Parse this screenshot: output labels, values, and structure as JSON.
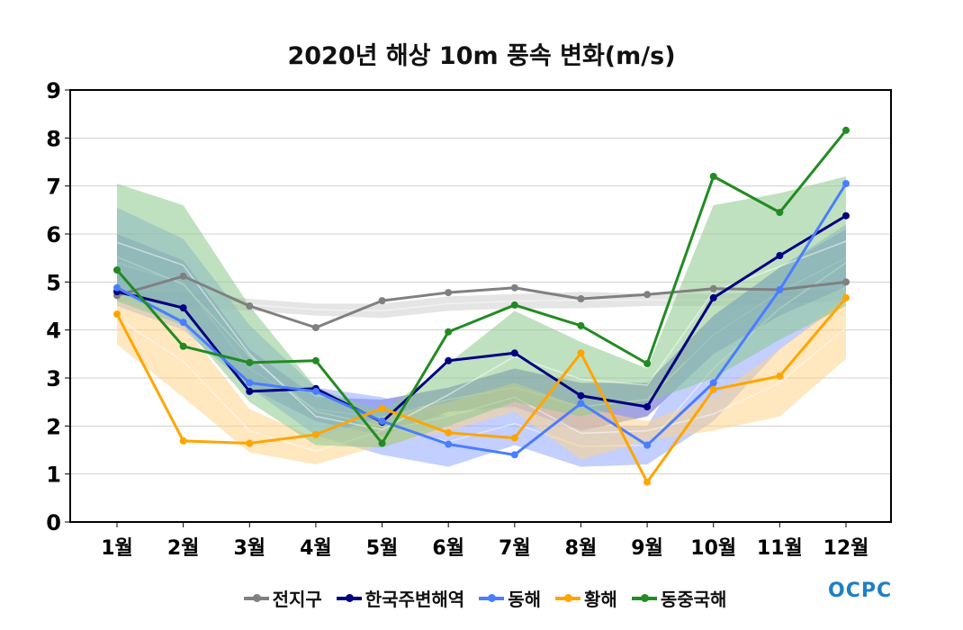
{
  "chart_data": {
    "type": "line",
    "title": "2020년 해상 10m 풍속 변화(m/s)",
    "xlabel": "",
    "ylabel": "",
    "categories": [
      "1월",
      "2월",
      "3월",
      "4월",
      "5월",
      "6월",
      "7월",
      "8월",
      "9월",
      "10월",
      "11월",
      "12월"
    ],
    "ylim": [
      0,
      9
    ],
    "yticks": [
      0,
      1,
      2,
      3,
      4,
      5,
      6,
      7,
      8,
      9
    ],
    "grid": true,
    "legend": "bottom",
    "series": [
      {
        "name": "전지구",
        "color": "#808080",
        "band_color": "#cfcfcf",
        "values": [
          4.72,
          5.12,
          4.5,
          4.05,
          4.61,
          4.78,
          4.88,
          4.65,
          4.74,
          4.86,
          4.84,
          5.0
        ],
        "band_low": [
          4.6,
          4.5,
          4.4,
          4.3,
          4.25,
          4.4,
          4.45,
          4.45,
          4.5,
          4.5,
          4.55,
          4.6
        ],
        "band_high": [
          4.8,
          4.8,
          4.65,
          4.55,
          4.55,
          4.7,
          4.75,
          4.8,
          4.75,
          4.75,
          4.8,
          4.85
        ]
      },
      {
        "name": "한국주변해역",
        "color": "#000080",
        "band_color": "#5a5ac8",
        "values": [
          4.8,
          4.46,
          2.72,
          2.78,
          2.08,
          3.36,
          3.52,
          2.63,
          2.4,
          4.67,
          5.55,
          6.38
        ],
        "band_low": [
          4.8,
          4.5,
          2.8,
          2.1,
          1.8,
          2.3,
          2.4,
          1.9,
          2.2,
          3.5,
          4.3,
          4.9
        ],
        "band_high": [
          6.0,
          5.45,
          3.6,
          2.6,
          2.55,
          2.8,
          3.2,
          2.9,
          2.9,
          4.3,
          5.3,
          6.1
        ]
      },
      {
        "name": "동해",
        "color": "#4a7dff",
        "band_color": "#8fa8ff",
        "values": [
          4.88,
          4.16,
          2.9,
          2.72,
          2.1,
          1.62,
          1.4,
          2.47,
          1.6,
          2.9,
          4.84,
          7.05
        ],
        "band_low": [
          4.5,
          4.0,
          2.8,
          1.8,
          1.4,
          1.15,
          1.6,
          1.15,
          1.2,
          2.1,
          3.6,
          4.6
        ],
        "band_high": [
          6.55,
          5.9,
          4.1,
          2.8,
          2.6,
          2.2,
          2.5,
          2.0,
          2.0,
          4.3,
          5.3,
          6.2
        ]
      },
      {
        "name": "황해",
        "color": "#ffa500",
        "band_color": "#ffd38a",
        "values": [
          4.33,
          1.69,
          1.64,
          1.82,
          2.37,
          1.86,
          1.75,
          3.52,
          0.83,
          2.76,
          3.04,
          4.67
        ],
        "band_low": [
          3.7,
          2.6,
          1.45,
          1.2,
          1.6,
          1.9,
          2.3,
          1.3,
          1.7,
          1.9,
          2.2,
          3.4
        ],
        "band_high": [
          4.8,
          4.1,
          2.35,
          1.75,
          2.2,
          2.5,
          2.9,
          2.4,
          2.1,
          2.6,
          3.6,
          4.7
        ]
      },
      {
        "name": "동중국해",
        "color": "#228b22",
        "band_color": "#8cc88c",
        "values": [
          5.25,
          3.66,
          3.32,
          3.36,
          1.64,
          3.96,
          4.52,
          4.09,
          3.3,
          7.2,
          6.45,
          8.16
        ],
        "band_low": [
          4.6,
          4.1,
          2.5,
          1.6,
          1.55,
          2.0,
          2.5,
          2.2,
          2.5,
          3.0,
          3.8,
          4.5
        ],
        "band_high": [
          7.05,
          6.6,
          4.5,
          2.8,
          2.3,
          3.3,
          4.4,
          3.75,
          3.2,
          6.6,
          6.85,
          7.2
        ]
      }
    ]
  },
  "logo": "OCPC"
}
